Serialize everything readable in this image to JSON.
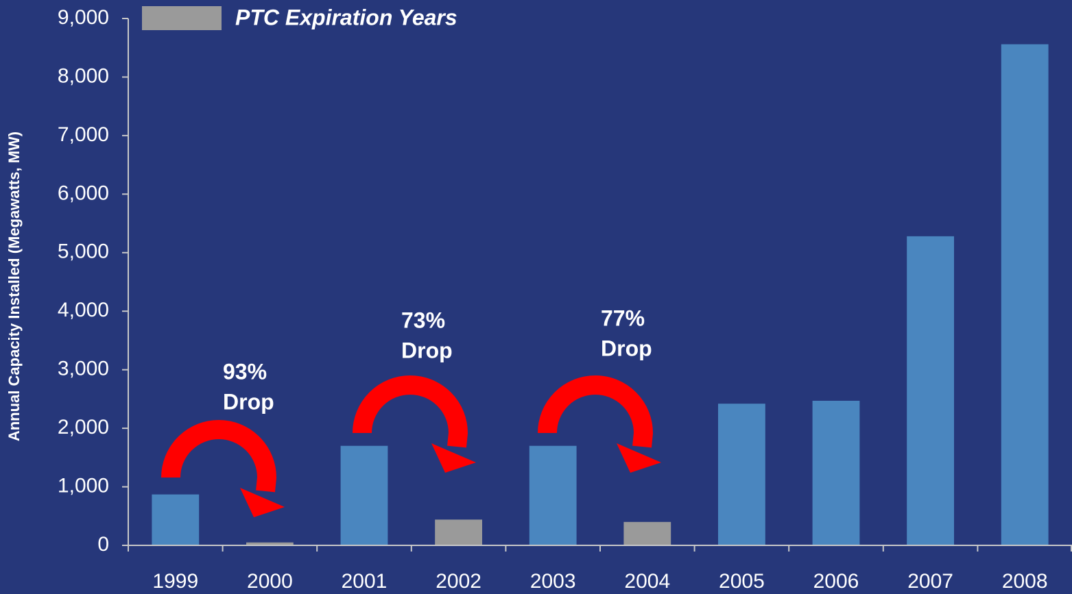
{
  "chart_data": {
    "type": "bar",
    "y_label": "Annual Capacity Installed (Megawatts, MW)",
    "categories": [
      "1999",
      "2000",
      "2001",
      "2002",
      "2003",
      "2004",
      "2005",
      "2006",
      "2007",
      "2008"
    ],
    "values": [
      870,
      50,
      1700,
      440,
      1700,
      400,
      2420,
      2470,
      5280,
      8560
    ],
    "colors": [
      "#4a86bf",
      "#9a9a9a",
      "#4a86bf",
      "#9a9a9a",
      "#4a86bf",
      "#9a9a9a",
      "#4a86bf",
      "#4a86bf",
      "#4a86bf",
      "#4a86bf"
    ],
    "legend": {
      "label": "PTC Expiration Years",
      "color": "#9a9a9a"
    },
    "ylim": [
      0,
      9000
    ],
    "yticks": [
      0,
      {
        "value": 1000,
        "label": "1,000"
      },
      {
        "value": 2000,
        "label": "2,000"
      },
      {
        "value": 3000,
        "label": "3,000"
      },
      {
        "value": 4000,
        "label": "4,000"
      },
      {
        "value": 5000,
        "label": "5,000"
      },
      {
        "value": 6000,
        "label": "6,000"
      },
      {
        "value": 7000,
        "label": "7,000"
      },
      {
        "value": 8000,
        "label": "8,000"
      },
      {
        "value": 9000,
        "label": "9,000"
      }
    ],
    "grid": false,
    "annotations": [
      {
        "lines": [
          "93%",
          "Drop"
        ]
      },
      {
        "lines": [
          "73%",
          "Drop"
        ]
      },
      {
        "lines": [
          "77%",
          "Drop"
        ]
      }
    ]
  }
}
